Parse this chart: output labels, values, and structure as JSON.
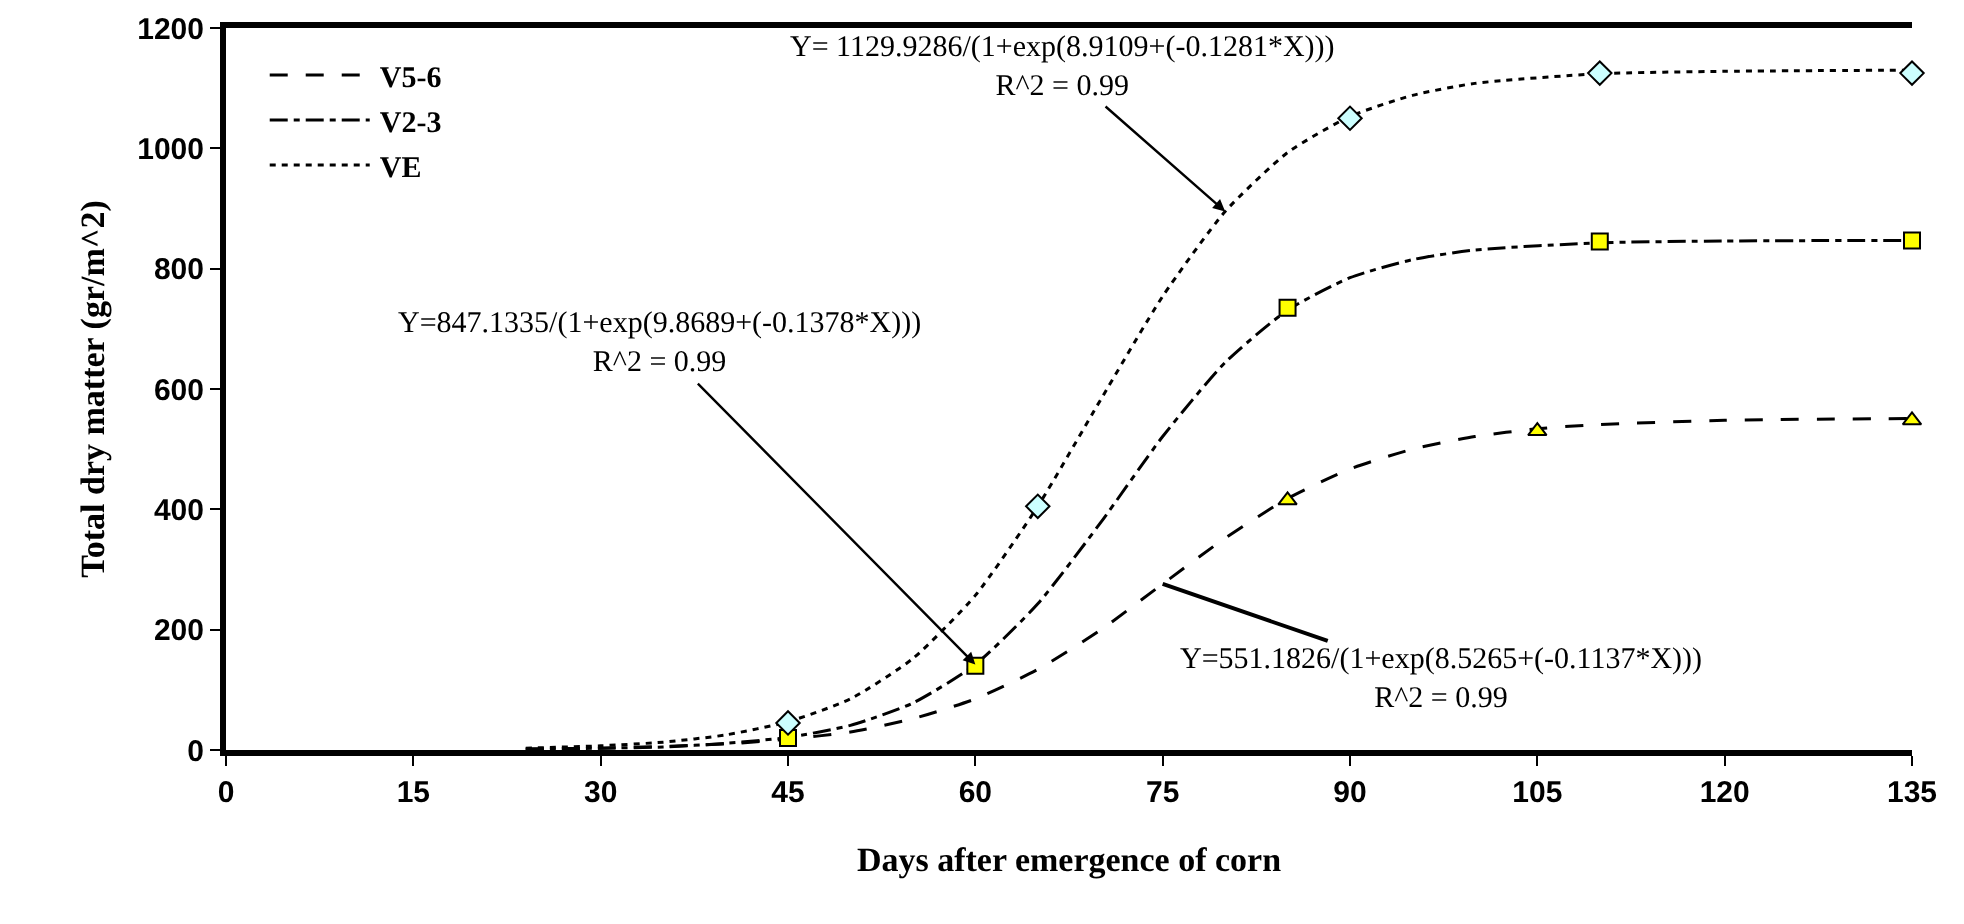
{
  "chart_data": {
    "type": "line",
    "xlabel": "Days after emergence of corn",
    "ylabel": "Total dry matter (gr/m^2)",
    "xlim": [
      0,
      135
    ],
    "xticks": [
      0,
      15,
      30,
      45,
      60,
      75,
      90,
      105,
      120,
      135
    ],
    "ylim": [
      0,
      1200
    ],
    "yticks": [
      0,
      200,
      400,
      600,
      800,
      1000,
      1200
    ],
    "grid": false,
    "legend": "top left",
    "series": [
      {
        "name": "V5-6",
        "color": "#000000",
        "line_style": "dashed",
        "marker": "none",
        "x": [
          24,
          30,
          35,
          40,
          45,
          50,
          55,
          60,
          65,
          70,
          75,
          80,
          85,
          90,
          95,
          100,
          105,
          110,
          120,
          135
        ],
        "values": [
          2,
          3,
          6,
          10,
          18,
          30,
          52,
          85,
          134,
          199,
          276,
          352,
          418,
          467,
          500,
          521,
          534,
          541,
          548,
          551
        ]
      },
      {
        "name": "V2-3",
        "color": "#000000",
        "line_style": "dashdot",
        "marker": "none",
        "x": [
          24,
          30,
          35,
          40,
          45,
          50,
          55,
          60,
          65,
          70,
          75,
          80,
          85,
          90,
          95,
          100,
          110,
          120,
          135
        ],
        "values": [
          1,
          3,
          5,
          11,
          21,
          41,
          78,
          142,
          243,
          377,
          521,
          644,
          731,
          785,
          815,
          831,
          843,
          846,
          847
        ]
      },
      {
        "name": "VE",
        "color": "#000000",
        "line_style": "dotted",
        "marker": "none",
        "x": [
          24,
          30,
          35,
          40,
          45,
          50,
          55,
          60,
          65,
          70,
          75,
          80,
          85,
          90,
          95,
          100,
          110,
          120,
          135
        ],
        "values": [
          3,
          7,
          13,
          25,
          47,
          85,
          152,
          257,
          405,
          581,
          754,
          895,
          993,
          1053,
          1088,
          1108,
          1124,
          1128,
          1130
        ]
      },
      {
        "type": "scatter",
        "color": "#ffff00",
        "marker": "triangle",
        "x": [
          85,
          105,
          135
        ],
        "values": [
          415,
          530,
          548
        ]
      },
      {
        "type": "scatter",
        "color": "#ffff00",
        "marker": "square",
        "x": [
          45,
          60,
          85,
          110,
          135
        ],
        "values": [
          20,
          140,
          735,
          845,
          847
        ]
      },
      {
        "type": "scatter",
        "color": "#ccffff",
        "marker": "diamond",
        "x": [
          45,
          65,
          90,
          110,
          135
        ],
        "values": [
          45,
          405,
          1050,
          1125,
          1125
        ]
      }
    ],
    "annotations": [
      {
        "text": "Y= 1129.9286/(1+exp(8.9109+(-0.1281*X)))\nR^2 = 0.99",
        "x": 80,
        "y": 895
      },
      {
        "text": "Y=847.1335/(1+exp(9.8689+(-0.1378*X)))\nR^2 = 0.99",
        "x": 60,
        "y": 142
      },
      {
        "text": "Y=551.1826/(1+exp(8.5265+(-0.1137*X)))\nR^2 = 0.99",
        "x": 75,
        "y": 276
      }
    ]
  }
}
